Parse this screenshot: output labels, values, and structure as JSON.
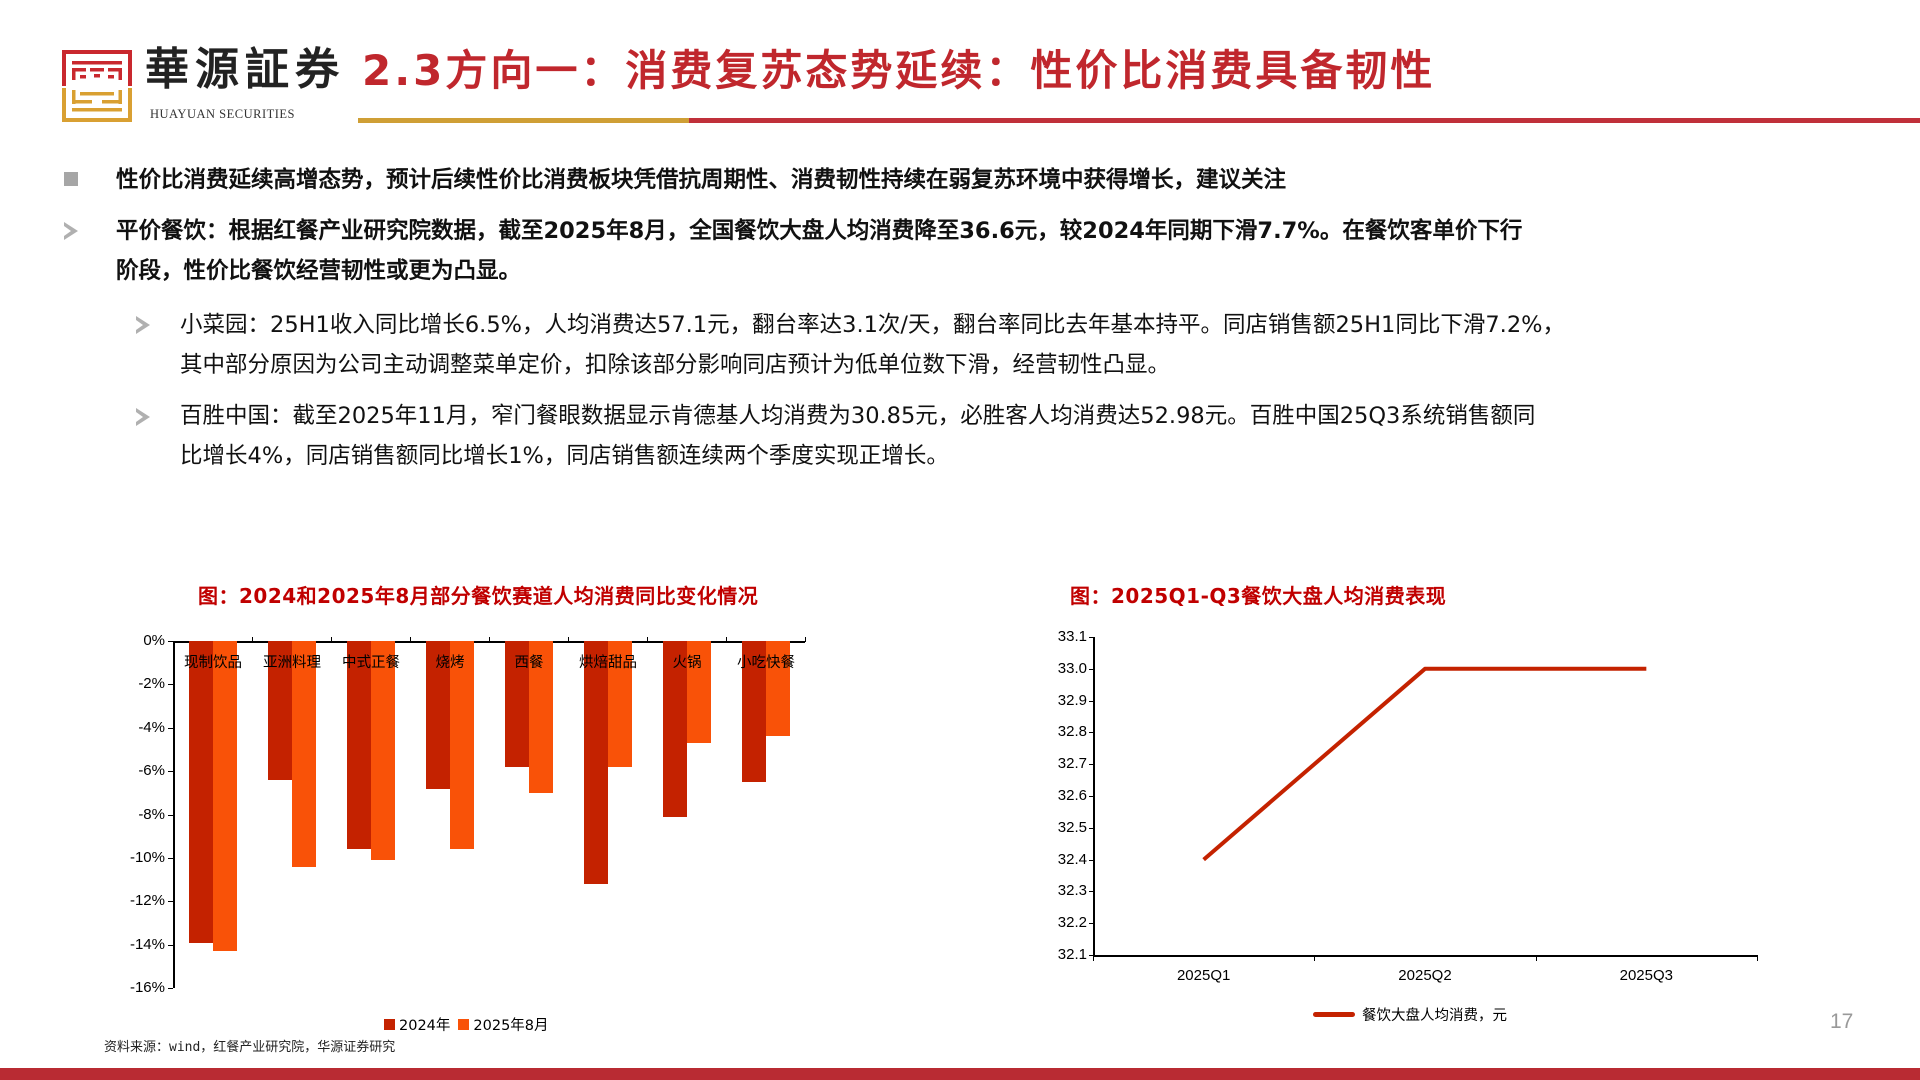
{
  "header": {
    "logo_name": "華源証券",
    "logo_sub": "HUAYUAN SECURITIES",
    "title": "2.3方向一：消费复苏态势延续：性价比消费具备韧性",
    "colors": {
      "title_red": "#C0272D",
      "rule_gold": "#CF9F35",
      "rule_red": "#C0303A"
    }
  },
  "bullets": [
    {
      "level": 1,
      "marker": "square",
      "lines": [
        "性价比消费延续高增态势，预计后续性价比消费板块凭借抗周期性、消费韧性持续在弱复苏环境中获得增长，建议关注"
      ]
    },
    {
      "level": 1,
      "marker": "arrow",
      "lines": [
        "平价餐饮：根据红餐产业研究院数据，截至2025年8月，全国餐饮大盘人均消费降至36.6元，较2024年同期下滑7.7%。在餐饮客单价下行",
        "阶段，性价比餐饮经营韧性或更为凸显。"
      ]
    },
    {
      "level": 2,
      "marker": "arrow",
      "lines": [
        "小菜园：25H1收入同比增长6.5%，人均消费达57.1元，翻台率达3.1次/天，翻台率同比去年基本持平。同店销售额25H1同比下滑7.2%，",
        "其中部分原因为公司主动调整菜单定价，扣除该部分影响同店预计为低单位数下滑，经营韧性凸显。"
      ]
    },
    {
      "level": 2,
      "marker": "arrow",
      "lines": [
        "百胜中国：截至2025年11月，窄门餐眼数据显示肯德基人均消费为30.85元，必胜客人均消费达52.98元。百胜中国25Q3系统销售额同",
        "比增长4%，同店销售额同比增长1%，同店销售额连续两个季度实现正增长。"
      ]
    }
  ],
  "chart_data": [
    {
      "type": "bar",
      "title": "图：2024和2025年8月部分餐饮赛道人均消费同比变化情况",
      "categories": [
        "现制饮品",
        "亚洲料理",
        "中式正餐",
        "烧烤",
        "西餐",
        "烘焙甜品",
        "火锅",
        "小吃快餐"
      ],
      "series": [
        {
          "name": "2024年",
          "color": "#C42200",
          "values": [
            -13.9,
            -6.4,
            -9.6,
            -6.8,
            -5.8,
            -11.2,
            -8.1,
            -6.5
          ]
        },
        {
          "name": "2025年8月",
          "color": "#F95208",
          "values": [
            -14.3,
            -10.4,
            -10.1,
            -9.6,
            -7.0,
            -5.8,
            -4.7,
            -4.4
          ]
        }
      ],
      "xlabel": "",
      "ylabel": "",
      "ylim": [
        -16,
        0
      ],
      "yticks": [
        "0%",
        "-2%",
        "-4%",
        "-6%",
        "-8%",
        "-10%",
        "-12%",
        "-14%",
        "-16%"
      ],
      "unit": "%",
      "grid": false,
      "legend_position": "bottom"
    },
    {
      "type": "line",
      "title": "图：2025Q1-Q3餐饮大盘人均消费表现",
      "categories": [
        "2025Q1",
        "2025Q2",
        "2025Q3"
      ],
      "series": [
        {
          "name": "餐饮大盘人均消费，元",
          "color": "#C42200",
          "values": [
            32.4,
            33.0,
            33.0
          ]
        }
      ],
      "xlabel": "",
      "ylabel": "",
      "ylim": [
        32.1,
        33.1
      ],
      "yticks": [
        "33.1",
        "33.0",
        "32.9",
        "32.8",
        "32.7",
        "32.6",
        "32.5",
        "32.4",
        "32.3",
        "32.2",
        "32.1"
      ],
      "grid": false,
      "legend_position": "bottom"
    }
  ],
  "footer": {
    "source": "资料来源：wind，红餐产业研究院，华源证券研究",
    "page_number": "17"
  }
}
